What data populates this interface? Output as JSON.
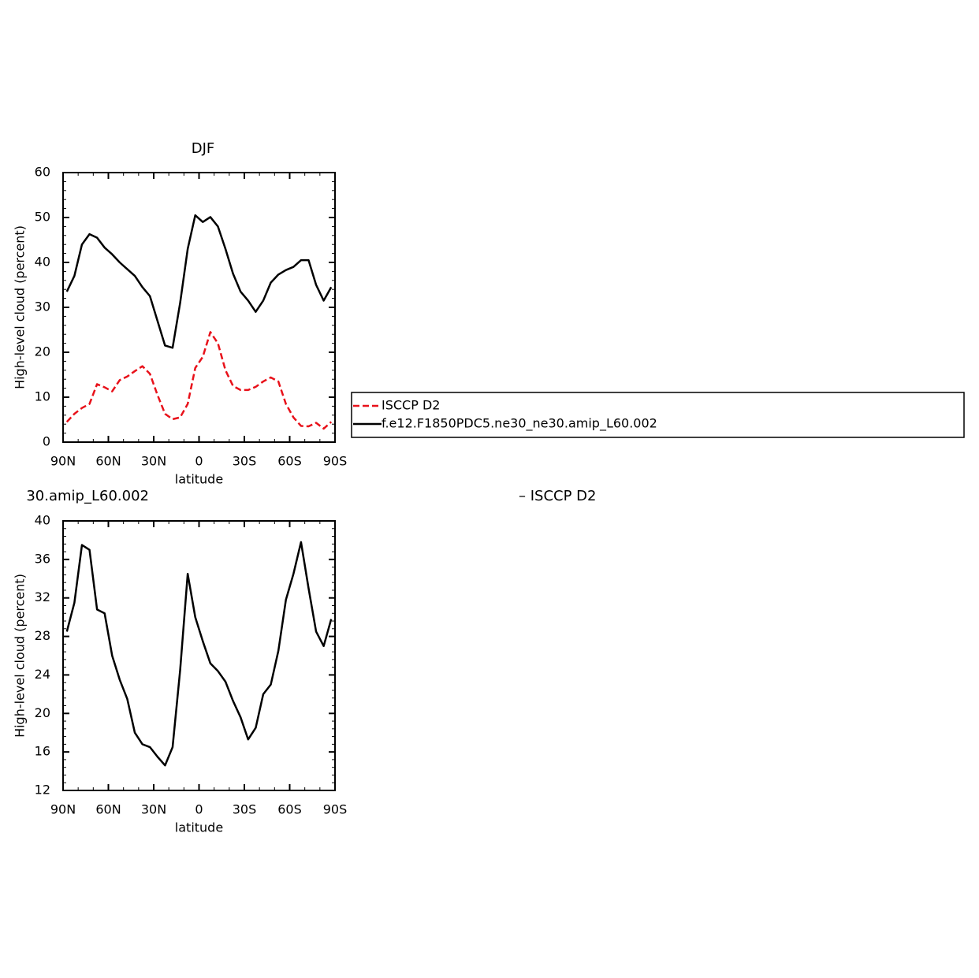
{
  "chart_data": [
    {
      "type": "line",
      "title": "DJF",
      "x_label": "latitude",
      "y_label": "High-level cloud (percent)",
      "x": [
        87.5,
        82.5,
        77.5,
        72.5,
        67.5,
        62.5,
        57.5,
        52.5,
        47.5,
        42.5,
        37.5,
        32.5,
        27.5,
        22.5,
        17.5,
        12.5,
        7.5,
        2.5,
        -2.5,
        -7.5,
        -12.5,
        -17.5,
        -22.5,
        -27.5,
        -32.5,
        -37.5,
        -42.5,
        -47.5,
        -52.5,
        -57.5,
        -62.5,
        -67.5,
        -72.5,
        -77.5,
        -82.5,
        -87.5
      ],
      "series": [
        {
          "name": "ISCCP D2",
          "color": "#e8111a",
          "dashed": true,
          "values": [
            4.5,
            6.3,
            7.6,
            8.5,
            12.9,
            12.2,
            11.3,
            13.8,
            14.6,
            15.8,
            16.9,
            15.2,
            10.5,
            6.3,
            5.1,
            5.5,
            8.5,
            16.5,
            19,
            24.5,
            22,
            16,
            12.5,
            11.6,
            11.6,
            12.3,
            13.5,
            14.4,
            13.5,
            8.5,
            5.5,
            3.6,
            3.5,
            4.3,
            3,
            4.5
          ]
        },
        {
          "name": "f.e12.F1850PDC5.ne30_ne30.amip_L60.002",
          "color": "#000000",
          "dashed": false,
          "values": [
            33.5,
            37,
            44,
            46.3,
            45.5,
            43.3,
            41.8,
            40,
            38.5,
            37,
            34.5,
            32.5,
            27,
            21.5,
            21,
            31,
            43,
            50.5,
            49,
            50.1,
            48,
            43,
            37.5,
            33.5,
            31.5,
            29,
            31.5,
            35.5,
            37.3,
            38.3,
            39,
            40.5,
            40.5,
            35,
            31.5,
            34.5
          ]
        }
      ],
      "xlim": [
        90,
        -90
      ],
      "xticks": [
        {
          "value": 90,
          "label": "90N"
        },
        {
          "value": 60,
          "label": "60N"
        },
        {
          "value": 30,
          "label": "30N"
        },
        0,
        {
          "value": -30,
          "label": "30S"
        },
        {
          "value": -60,
          "label": "60S"
        },
        {
          "value": -90,
          "label": "90S"
        }
      ],
      "ylim": [
        0,
        60
      ],
      "yticks": [
        0,
        10,
        20,
        30,
        40,
        50,
        60
      ],
      "grid": false,
      "legend": "right"
    },
    {
      "type": "line",
      "title_parts": [
        "30.amip_L60.002",
        "– ISCCP D2"
      ],
      "x_label": "latitude",
      "y_label": "High-level cloud (percent)",
      "x": [
        87.5,
        82.5,
        77.5,
        72.5,
        67.5,
        62.5,
        57.5,
        52.5,
        47.5,
        42.5,
        37.5,
        32.5,
        27.5,
        22.5,
        17.5,
        12.5,
        7.5,
        2.5,
        -2.5,
        -7.5,
        -12.5,
        -17.5,
        -22.5,
        -27.5,
        -32.5,
        -37.5,
        -42.5,
        -47.5,
        -52.5,
        -57.5,
        -62.5,
        -67.5,
        -72.5,
        -77.5,
        -82.5,
        -87.5
      ],
      "series": [
        {
          "color": "#000000",
          "dashed": false,
          "values": [
            28.5,
            31.5,
            37.5,
            37,
            30.8,
            30.4,
            26,
            23.5,
            21.5,
            18,
            16.8,
            16.5,
            15.5,
            14.6,
            16.5,
            24.5,
            34.5,
            30,
            27.5,
            25.2,
            24.4,
            23.3,
            21.3,
            19.6,
            17.3,
            18.5,
            22,
            23,
            26.5,
            31.8,
            34.5,
            37.8,
            33,
            28.5,
            27,
            29.8
          ]
        }
      ],
      "xlim": [
        90,
        -90
      ],
      "xticks": [
        {
          "value": 90,
          "label": "90N"
        },
        {
          "value": 60,
          "label": "60N"
        },
        {
          "value": 30,
          "label": "30N"
        },
        0,
        {
          "value": -30,
          "label": "30S"
        },
        {
          "value": -60,
          "label": "60S"
        },
        {
          "value": -90,
          "label": "90S"
        }
      ],
      "ylim": [
        12,
        40
      ],
      "yticks": [
        12,
        16,
        20,
        24,
        28,
        32,
        36,
        40
      ],
      "grid": false
    }
  ]
}
